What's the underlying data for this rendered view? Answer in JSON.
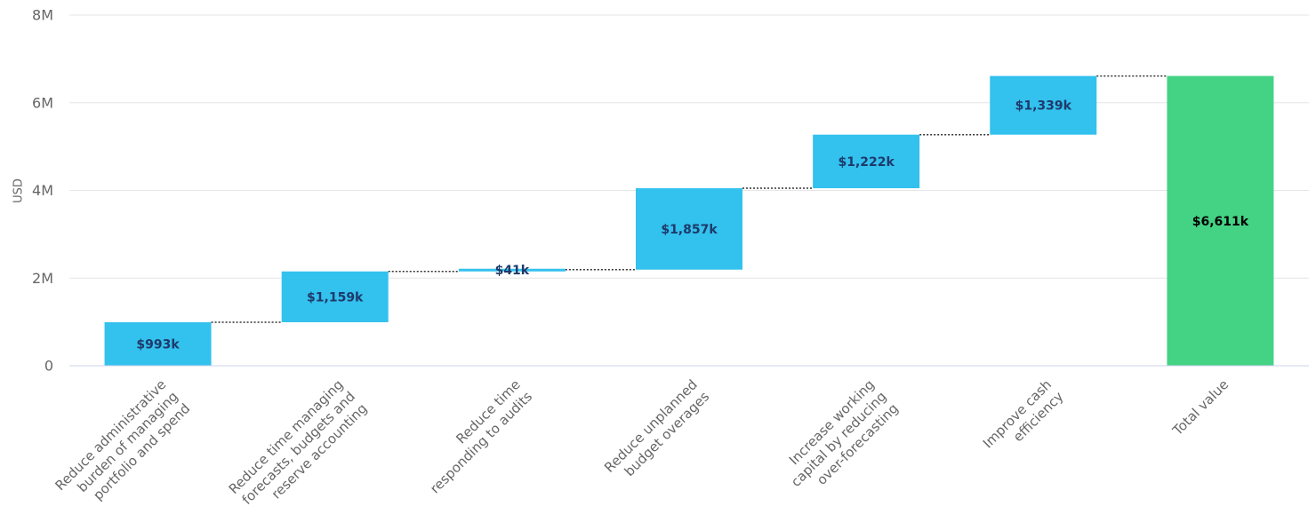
{
  "chart_data": {
    "type": "bar",
    "subtype": "waterfall",
    "ylabel": "USD",
    "ylim": [
      0,
      8000000
    ],
    "yticks": [
      {
        "value": 0,
        "label": "0"
      },
      {
        "value": 2000000,
        "label": "2M"
      },
      {
        "value": 4000000,
        "label": "4M"
      },
      {
        "value": 6000000,
        "label": "6M"
      },
      {
        "value": 8000000,
        "label": "8M"
      }
    ],
    "grid": true,
    "categories": [
      [
        "Reduce administrative",
        "burden of managing",
        "portfolio and spend"
      ],
      [
        "Reduce time managing",
        "forecasts, budgets and",
        "reserve accounting"
      ],
      [
        "Reduce time",
        "responding to audits"
      ],
      [
        "Reduce unplanned",
        "budget overages"
      ],
      [
        "Increase working",
        "capital by reducing",
        "over-forecasting"
      ],
      [
        "Improve cash",
        "efficiency"
      ],
      [
        "Total value"
      ]
    ],
    "values": [
      993000,
      1159000,
      41000,
      1857000,
      1222000,
      1339000,
      6611000
    ],
    "data_labels": [
      "$993k",
      "$1,159k",
      "$41k",
      "$1,857k",
      "$1,222k",
      "$1,339k",
      "$6,611k"
    ],
    "is_total": [
      false,
      false,
      false,
      false,
      false,
      false,
      true
    ],
    "colors": {
      "increase": "#33c1ee",
      "total": "#44d285",
      "increase_label": "#1e3a6a",
      "total_label": "#000000",
      "grid": "#e6e6e6",
      "axis": "#ccd6eb",
      "connector": "#333333"
    }
  }
}
